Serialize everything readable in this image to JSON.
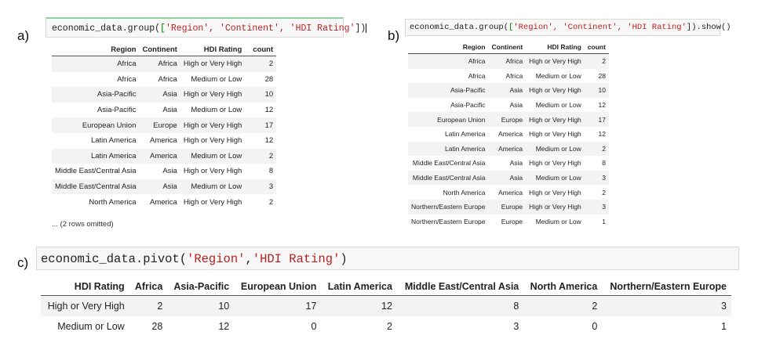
{
  "labels": {
    "a": "a)",
    "b": "b)",
    "c": "c)"
  },
  "panel_a": {
    "code": {
      "prefix": "economic_data.group(",
      "open": "[",
      "args": "'Region', 'Continent', 'HDI Rating'",
      "close": "])"
    },
    "headers": [
      "Region",
      "Continent",
      "HDI Rating",
      "count"
    ],
    "rows": [
      [
        "Africa",
        "Africa",
        "High or Very High",
        "2"
      ],
      [
        "Africa",
        "Africa",
        "Medium or Low",
        "28"
      ],
      [
        "Asia-Pacific",
        "Asia",
        "High or Very High",
        "10"
      ],
      [
        "Asia-Pacific",
        "Asia",
        "Medium or Low",
        "12"
      ],
      [
        "European Union",
        "Europe",
        "High or Very High",
        "17"
      ],
      [
        "Latin America",
        "America",
        "High or Very High",
        "12"
      ],
      [
        "Latin America",
        "America",
        "Medium or Low",
        "2"
      ],
      [
        "Middle East/Central Asia",
        "Asia",
        "High or Very High",
        "8"
      ],
      [
        "Middle East/Central Asia",
        "Asia",
        "Medium or Low",
        "3"
      ],
      [
        "North America",
        "America",
        "High or Very High",
        "2"
      ]
    ],
    "omitted_note": "... (2 rows omitted)"
  },
  "panel_b": {
    "code": {
      "prefix": "economic_data.group(",
      "open": "[",
      "args": "'Region', 'Continent', 'HDI Rating'",
      "close": "]).show()"
    },
    "headers": [
      "Region",
      "Continent",
      "HDI Rating",
      "count"
    ],
    "rows": [
      [
        "Africa",
        "Africa",
        "High or Very High",
        "2"
      ],
      [
        "Africa",
        "Africa",
        "Medium or Low",
        "28"
      ],
      [
        "Asia-Pacific",
        "Asia",
        "High or Very High",
        "10"
      ],
      [
        "Asia-Pacific",
        "Asia",
        "Medium or Low",
        "12"
      ],
      [
        "European Union",
        "Europe",
        "High or Very High",
        "17"
      ],
      [
        "Latin America",
        "America",
        "High or Very High",
        "12"
      ],
      [
        "Latin America",
        "America",
        "Medium or Low",
        "2"
      ],
      [
        "Middle East/Central Asia",
        "Asia",
        "High or Very High",
        "8"
      ],
      [
        "Middle East/Central Asia",
        "Asia",
        "Medium or Low",
        "3"
      ],
      [
        "North America",
        "America",
        "High or Very High",
        "2"
      ],
      [
        "Northern/Eastern Europe",
        "Europe",
        "High or Very High",
        "3"
      ],
      [
        "Northern/Eastern Europe",
        "Europe",
        "Medium or Low",
        "1"
      ]
    ]
  },
  "panel_c": {
    "code": {
      "prefix": "economic_data.pivot(",
      "arg1": "'Region'",
      "sep": ",",
      "arg2": "'HDI Rating'",
      "close": ")"
    },
    "headers": [
      "HDI Rating",
      "Africa",
      "Asia-Pacific",
      "European Union",
      "Latin America",
      "Middle East/Central Asia",
      "North America",
      "Northern/Eastern Europe"
    ],
    "rows": [
      [
        "High or Very High",
        "2",
        "10",
        "17",
        "12",
        "8",
        "2",
        "3"
      ],
      [
        "Medium or Low",
        "28",
        "12",
        "0",
        "2",
        "3",
        "0",
        "1"
      ]
    ]
  }
}
